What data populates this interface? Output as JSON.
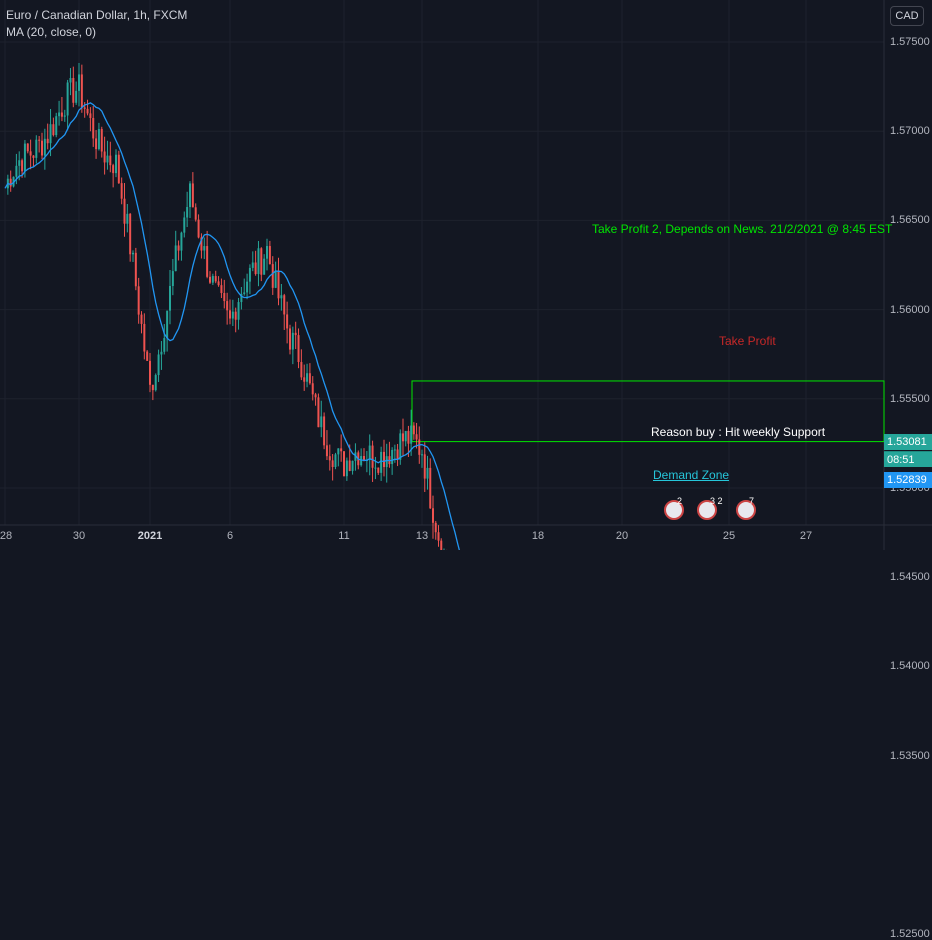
{
  "header": {
    "title": "Euro / Canadian Dollar, 1h, FXCM",
    "indicator": "MA (20, close, 0)"
  },
  "currency_badge": "CAD",
  "price_tags": {
    "last_price": "1.53081",
    "countdown": "08:51",
    "line_price": "1.52839"
  },
  "annotations": {
    "take_profit_2": "Take Profit 2, Depends on News. 21/2/2021 @ 8:45 EST",
    "take_profit": "Take Profit",
    "reason": "Reason buy : Hit weekly Support",
    "demand_zone": "Demand Zone"
  },
  "events": [
    {
      "count": "2"
    },
    {
      "count": "3 2"
    },
    {
      "count": "7"
    }
  ],
  "colors": {
    "background": "#131722",
    "up_candle": "#26a69a",
    "down_candle": "#ef5350",
    "ma_line": "#2196f3",
    "take_profit_2": "#00e600",
    "take_profit": "#b71c1c",
    "demand_zone": "#26c6da",
    "horizontal_line": "#2196f3",
    "last_price_tag": "#26a69a"
  },
  "chart_data": {
    "type": "candlestick",
    "symbol": "Euro / Canadian Dollar",
    "timeframe": "1h",
    "source": "FXCM",
    "y_axis": {
      "ticks": [
        "1.57500",
        "1.57000",
        "1.56500",
        "1.56000",
        "1.55500",
        "1.55000",
        "1.54500",
        "1.54000",
        "1.53500",
        "1.52500"
      ],
      "range": [
        1.5233,
        1.5795
      ]
    },
    "x_axis": {
      "ticks": [
        "28",
        "30",
        "2021",
        "6",
        "11",
        "13",
        "18",
        "20",
        "25",
        "27"
      ]
    },
    "anchors": [
      {
        "date": "28",
        "price": 1.5665
      },
      {
        "date": "29",
        "price": 1.57
      },
      {
        "date": "30",
        "price": 1.572
      },
      {
        "date": "31",
        "price": 1.568
      },
      {
        "date": "2021",
        "price": 1.556
      },
      {
        "date": "4",
        "price": 1.566
      },
      {
        "date": "6",
        "price": 1.559
      },
      {
        "date": "8",
        "price": 1.564
      },
      {
        "date": "9",
        "price": 1.558
      },
      {
        "date": "11",
        "price": 1.551
      },
      {
        "date": "12",
        "price": 1.5525
      },
      {
        "date": "13",
        "price": 1.552
      },
      {
        "date": "14",
        "price": 1.544
      },
      {
        "date": "15",
        "price": 1.536
      },
      {
        "date": "17",
        "price": 1.5375
      },
      {
        "date": "18",
        "price": 1.544
      },
      {
        "date": "19",
        "price": 1.54
      },
      {
        "date": "20",
        "price": 1.5455
      },
      {
        "date": "20",
        "price": 1.54
      },
      {
        "date": "21",
        "price": 1.5283
      }
    ],
    "moving_average": {
      "type": "MA",
      "length": 20,
      "source": "close",
      "offset": 0
    },
    "levels": [
      {
        "label": "Take Profit 2, Depends on News. 21/2/2021 @ 8:45 EST",
        "from": 1.5526,
        "to": 1.556
      },
      {
        "label": "Take Profit",
        "from": 1.5412,
        "to": 1.5433
      },
      {
        "label": "Demand Zone",
        "from": 1.527,
        "to": 1.5297
      }
    ],
    "horizontal_line": 1.52839,
    "last_price": 1.53081
  }
}
